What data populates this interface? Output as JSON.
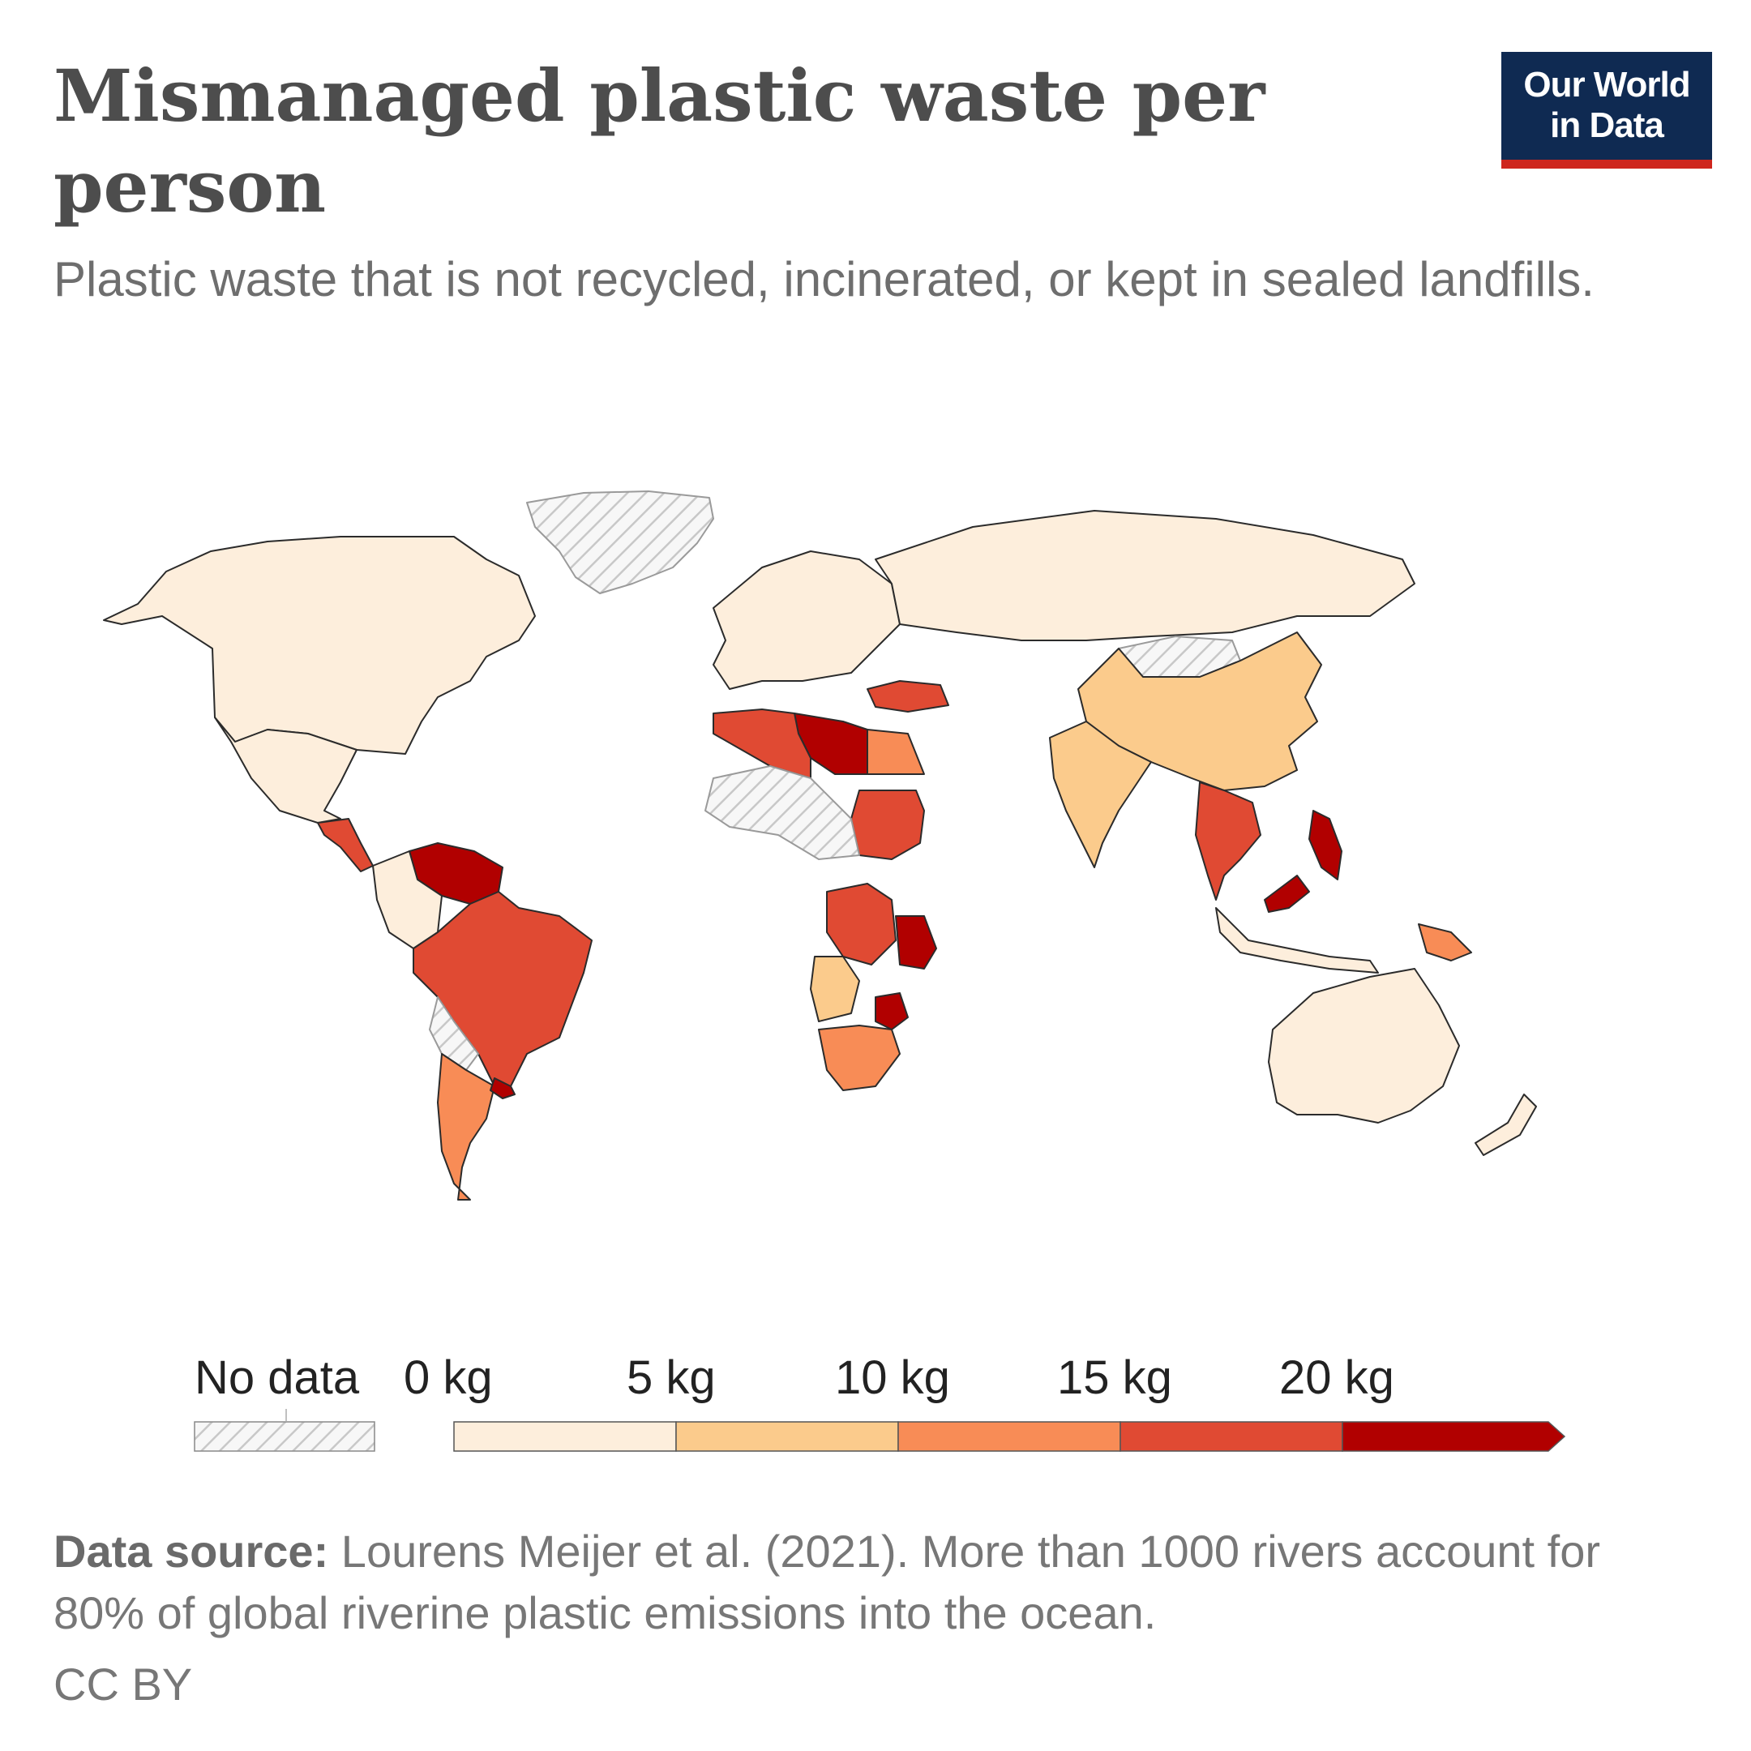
{
  "header": {
    "title": "Mismanaged plastic waste per person",
    "subtitle": "Plastic waste that is not recycled, incinerated, or kept in sealed landfills."
  },
  "logo": {
    "line1": "Our World",
    "line2": "in Data",
    "background": "#0f2a52",
    "accent": "#ce261e"
  },
  "legend": {
    "no_data_label": "No data",
    "ticks": [
      "0 kg",
      "5 kg",
      "10 kg",
      "15 kg",
      "20 kg"
    ],
    "bins": [
      {
        "from": 0,
        "to": 5,
        "color": "#fdeedc"
      },
      {
        "from": 5,
        "to": 10,
        "color": "#fbcb8c"
      },
      {
        "from": 10,
        "to": 15,
        "color": "#f88c56"
      },
      {
        "from": 15,
        "to": 20,
        "color": "#e04a33"
      },
      {
        "from": 20,
        "to": null,
        "color": "#b10000"
      }
    ]
  },
  "map_data": {
    "type": "choropleth",
    "unit": "kg",
    "regions": [
      {
        "name": "North America",
        "category": "0-5"
      },
      {
        "name": "Greenland",
        "category": "no-data"
      },
      {
        "name": "Mexico",
        "category": "0-5"
      },
      {
        "name": "Central America",
        "category": "15-20"
      },
      {
        "name": "Venezuela",
        "category": "20+"
      },
      {
        "name": "Colombia",
        "category": "0-5"
      },
      {
        "name": "Brazil",
        "category": "15-20"
      },
      {
        "name": "Bolivia",
        "category": "no-data"
      },
      {
        "name": "Argentina",
        "category": "10-15"
      },
      {
        "name": "Uruguay",
        "category": "20+"
      },
      {
        "name": "Europe",
        "category": "0-5"
      },
      {
        "name": "Russia",
        "category": "0-5"
      },
      {
        "name": "Turkey",
        "category": "15-20"
      },
      {
        "name": "Mongolia",
        "category": "no-data"
      },
      {
        "name": "China",
        "category": "5-10"
      },
      {
        "name": "India",
        "category": "5-10"
      },
      {
        "name": "Libya",
        "category": "20+"
      },
      {
        "name": "Algeria",
        "category": "15-20"
      },
      {
        "name": "Egypt",
        "category": "10-15"
      },
      {
        "name": "Sudan",
        "category": "15-20"
      },
      {
        "name": "Sahel",
        "category": "no-data"
      },
      {
        "name": "DR Congo",
        "category": "15-20"
      },
      {
        "name": "Tanzania",
        "category": "20+"
      },
      {
        "name": "Angola",
        "category": "5-10"
      },
      {
        "name": "Zimbabwe",
        "category": "20+"
      },
      {
        "name": "South Africa",
        "category": "10-15"
      },
      {
        "name": "Southeast Asia",
        "category": "15-20"
      },
      {
        "name": "Philippines",
        "category": "20+"
      },
      {
        "name": "Malaysia",
        "category": "20+"
      },
      {
        "name": "Indonesia",
        "category": "0-5"
      },
      {
        "name": "Papua New Guinea",
        "category": "10-15"
      },
      {
        "name": "Australia",
        "category": "0-5"
      },
      {
        "name": "New Zealand",
        "category": "0-5"
      }
    ]
  },
  "footer": {
    "source_label": "Data source:",
    "source_text": " Lourens Meijer et al. (2021). More than 1000 rivers account for 80% of global riverine plastic emissions into the ocean.",
    "license": "CC BY"
  }
}
